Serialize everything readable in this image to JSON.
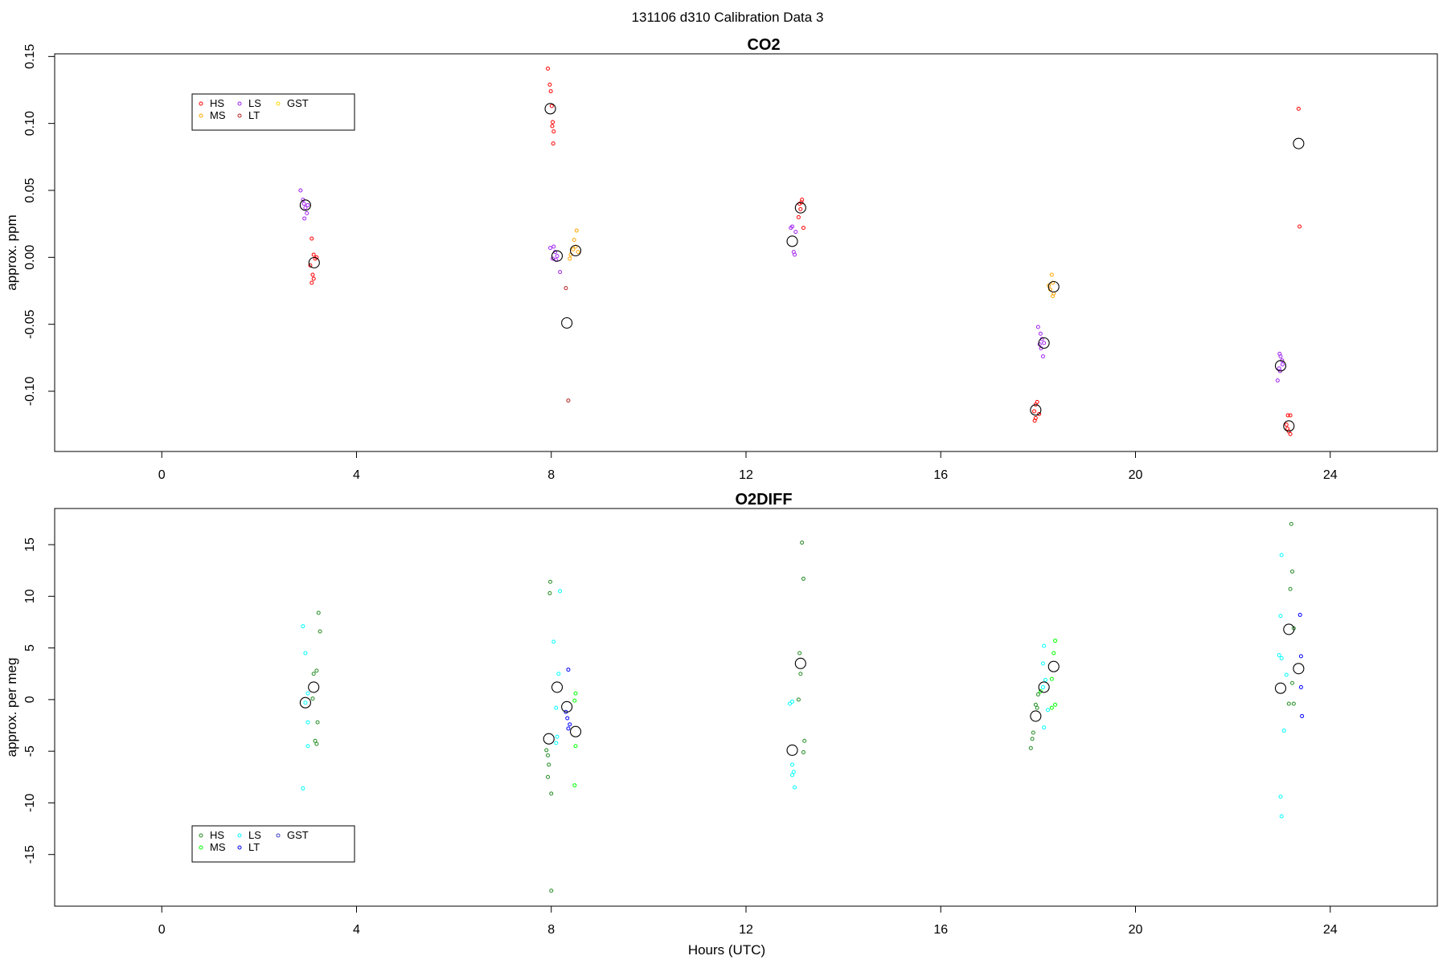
{
  "page": {
    "title": "131106   d310   Calibration Data 3"
  },
  "chart_data": [
    {
      "type": "scatter",
      "title": "CO2",
      "xlabel": "",
      "ylabel": "approx. ppm",
      "xlim": [
        -2.2,
        26.2
      ],
      "ylim": [
        -0.145,
        0.152
      ],
      "xticks": [
        0,
        4,
        8,
        12,
        16,
        20,
        24
      ],
      "yticks": [
        -0.1,
        -0.05,
        0.0,
        0.05,
        0.1,
        0.15
      ],
      "ytick_labels": [
        "-0.10",
        "-0.05",
        "0.00",
        "0.05",
        "0.10",
        "0.15"
      ],
      "legend": {
        "position": "top-left",
        "columns": 3
      },
      "series": [
        {
          "name": "HS",
          "color": "#ff0000",
          "marker": "small-circle",
          "points": [
            [
              3.08,
              0.014
            ],
            [
              3.12,
              0.002
            ],
            [
              3.18,
              0.0
            ],
            [
              3.05,
              -0.006
            ],
            [
              3.1,
              -0.013
            ],
            [
              3.12,
              -0.016
            ],
            [
              3.08,
              -0.019
            ],
            [
              3.15,
              -0.001
            ],
            [
              7.93,
              0.141
            ],
            [
              7.97,
              0.129
            ],
            [
              7.99,
              0.124
            ],
            [
              8.01,
              0.113
            ],
            [
              8.03,
              0.101
            ],
            [
              8.02,
              0.098
            ],
            [
              8.05,
              0.094
            ],
            [
              8.04,
              0.085
            ],
            [
              13.1,
              0.04
            ],
            [
              13.15,
              0.043
            ],
            [
              13.12,
              0.036
            ],
            [
              13.08,
              0.03
            ],
            [
              13.18,
              0.022
            ],
            [
              13.14,
              0.041
            ],
            [
              17.95,
              -0.11
            ],
            [
              17.98,
              -0.108
            ],
            [
              17.92,
              -0.115
            ],
            [
              18.02,
              -0.117
            ],
            [
              17.95,
              -0.12
            ],
            [
              17.93,
              -0.122
            ],
            [
              23.13,
              -0.118
            ],
            [
              23.18,
              -0.118
            ],
            [
              23.1,
              -0.125
            ],
            [
              23.12,
              -0.128
            ],
            [
              23.15,
              -0.13
            ],
            [
              23.18,
              -0.132
            ],
            [
              23.35,
              0.111
            ],
            [
              23.37,
              0.023
            ]
          ]
        },
        {
          "name": "MS",
          "color": "#ffa500",
          "marker": "small-circle",
          "points": [
            [
              8.47,
              0.013
            ],
            [
              8.52,
              0.02
            ],
            [
              8.4,
              0.002
            ],
            [
              8.45,
              0.006
            ],
            [
              8.38,
              -0.001
            ],
            [
              8.55,
              0.004
            ],
            [
              8.5,
              0.008
            ],
            [
              18.28,
              -0.013
            ],
            [
              18.3,
              -0.019
            ],
            [
              18.25,
              -0.024
            ],
            [
              18.32,
              -0.027
            ],
            [
              18.3,
              -0.029
            ],
            [
              18.22,
              -0.021
            ]
          ]
        },
        {
          "name": "LS",
          "color": "#a020f0",
          "marker": "small-circle",
          "points": [
            [
              2.85,
              0.05
            ],
            [
              2.9,
              0.043
            ],
            [
              2.92,
              0.04
            ],
            [
              2.95,
              0.037
            ],
            [
              2.98,
              0.033
            ],
            [
              2.93,
              0.029
            ],
            [
              3.0,
              0.039
            ],
            [
              7.98,
              0.007
            ],
            [
              8.05,
              0.008
            ],
            [
              8.08,
              0.004
            ],
            [
              8.12,
              0.001
            ],
            [
              8.1,
              -0.002
            ],
            [
              8.03,
              -0.001
            ],
            [
              8.18,
              -0.011
            ],
            [
              12.92,
              0.022
            ],
            [
              13.02,
              0.019
            ],
            [
              12.95,
              0.023
            ],
            [
              12.98,
              0.004
            ],
            [
              13.0,
              0.002
            ],
            [
              18.0,
              -0.052
            ],
            [
              18.05,
              -0.057
            ],
            [
              18.08,
              -0.061
            ],
            [
              18.03,
              -0.065
            ],
            [
              18.06,
              -0.068
            ],
            [
              18.1,
              -0.074
            ],
            [
              18.12,
              -0.064
            ],
            [
              22.96,
              -0.072
            ],
            [
              22.98,
              -0.074
            ],
            [
              23.01,
              -0.077
            ],
            [
              22.95,
              -0.083
            ],
            [
              22.97,
              -0.085
            ],
            [
              22.92,
              -0.092
            ],
            [
              23.02,
              -0.08
            ]
          ]
        },
        {
          "name": "LT",
          "color": "#b22222",
          "marker": "small-circle",
          "points": [
            [
              8.3,
              -0.023
            ],
            [
              8.35,
              -0.107
            ]
          ]
        },
        {
          "name": "GST",
          "color": "#ffd700",
          "marker": "small-circle",
          "points": []
        },
        {
          "name": "",
          "color": "#000000",
          "marker": "large-circle",
          "points": [
            [
              2.95,
              0.039
            ],
            [
              3.13,
              -0.004
            ],
            [
              7.98,
              0.111
            ],
            [
              8.12,
              0.001
            ],
            [
              8.32,
              -0.049
            ],
            [
              8.5,
              0.005
            ],
            [
              12.95,
              0.012
            ],
            [
              13.12,
              0.037
            ],
            [
              17.95,
              -0.114
            ],
            [
              18.12,
              -0.064
            ],
            [
              18.32,
              -0.022
            ],
            [
              22.98,
              -0.081
            ],
            [
              23.15,
              -0.126
            ],
            [
              23.35,
              0.085
            ]
          ]
        }
      ]
    },
    {
      "type": "scatter",
      "title": "O2DIFF",
      "xlabel": "Hours (UTC)",
      "ylabel": "approx. per meg",
      "xlim": [
        -2.2,
        26.2
      ],
      "ylim": [
        -20.0,
        18.5
      ],
      "xticks": [
        0,
        4,
        8,
        12,
        16,
        20,
        24
      ],
      "yticks": [
        -15,
        -10,
        -5,
        0,
        5,
        10,
        15
      ],
      "ytick_labels": [
        "-15",
        "-10",
        "-5",
        "0",
        "5",
        "10",
        "15"
      ],
      "legend": {
        "position": "bottom-left",
        "columns": 3
      },
      "series": [
        {
          "name": "HS",
          "color": "#228b22",
          "marker": "small-circle",
          "points": [
            [
              3.22,
              8.4
            ],
            [
              3.25,
              6.6
            ],
            [
              3.18,
              2.8
            ],
            [
              3.12,
              2.5
            ],
            [
              3.2,
              -2.2
            ],
            [
              3.15,
              -4.0
            ],
            [
              3.18,
              -4.3
            ],
            [
              3.1,
              0.1
            ],
            [
              7.98,
              11.4
            ],
            [
              7.97,
              10.3
            ],
            [
              7.9,
              -4.9
            ],
            [
              7.93,
              -5.4
            ],
            [
              7.95,
              -6.3
            ],
            [
              7.93,
              -7.5
            ],
            [
              8.0,
              -9.1
            ],
            [
              8.0,
              -18.5
            ],
            [
              13.15,
              15.2
            ],
            [
              13.18,
              11.7
            ],
            [
              13.1,
              4.5
            ],
            [
              13.12,
              2.5
            ],
            [
              13.08,
              0.0
            ],
            [
              13.2,
              -4.0
            ],
            [
              13.18,
              -5.1
            ],
            [
              18.0,
              0.5
            ],
            [
              17.95,
              -0.5
            ],
            [
              17.98,
              -0.8
            ],
            [
              17.9,
              -3.2
            ],
            [
              17.88,
              -3.8
            ],
            [
              17.85,
              -4.7
            ],
            [
              23.2,
              17.0
            ],
            [
              23.22,
              12.4
            ],
            [
              23.18,
              10.7
            ],
            [
              23.25,
              6.9
            ],
            [
              23.22,
              1.6
            ],
            [
              23.15,
              -0.4
            ],
            [
              23.25,
              -0.4
            ]
          ]
        },
        {
          "name": "MS",
          "color": "#00ff00",
          "marker": "small-circle",
          "points": [
            [
              8.5,
              0.6
            ],
            [
              8.48,
              -0.1
            ],
            [
              8.5,
              -4.5
            ],
            [
              8.48,
              -8.3
            ],
            [
              18.35,
              5.7
            ],
            [
              18.32,
              4.5
            ],
            [
              18.28,
              2.0
            ],
            [
              18.35,
              -0.5
            ],
            [
              18.28,
              -0.8
            ],
            [
              18.05,
              0.8
            ]
          ]
        },
        {
          "name": "LS",
          "color": "#00ffff",
          "marker": "small-circle",
          "points": [
            [
              2.9,
              7.1
            ],
            [
              2.95,
              4.5
            ],
            [
              3.0,
              0.6
            ],
            [
              2.95,
              -0.3
            ],
            [
              3.0,
              -2.2
            ],
            [
              3.0,
              -4.5
            ],
            [
              2.9,
              -8.6
            ],
            [
              8.18,
              10.5
            ],
            [
              8.05,
              5.6
            ],
            [
              8.15,
              2.5
            ],
            [
              8.1,
              -0.8
            ],
            [
              8.12,
              -3.6
            ],
            [
              8.1,
              -4.2
            ],
            [
              12.95,
              -0.2
            ],
            [
              12.9,
              -0.4
            ],
            [
              12.95,
              -6.3
            ],
            [
              12.98,
              -7.0
            ],
            [
              12.95,
              -7.3
            ],
            [
              13.0,
              -8.5
            ],
            [
              18.12,
              5.2
            ],
            [
              18.1,
              3.5
            ],
            [
              18.15,
              1.9
            ],
            [
              18.1,
              1.2
            ],
            [
              18.2,
              -1.0
            ],
            [
              18.12,
              -2.7
            ],
            [
              23.0,
              14.0
            ],
            [
              22.98,
              8.1
            ],
            [
              22.95,
              4.3
            ],
            [
              23.0,
              4.0
            ],
            [
              23.1,
              2.4
            ],
            [
              23.05,
              -3.0
            ],
            [
              22.98,
              -9.4
            ],
            [
              23.0,
              -11.3
            ]
          ]
        },
        {
          "name": "LT",
          "color": "#0000ff",
          "marker": "small-circle",
          "points": [
            [
              8.35,
              2.9
            ],
            [
              8.3,
              -1.2
            ],
            [
              8.33,
              -1.8
            ],
            [
              8.38,
              -2.4
            ],
            [
              8.35,
              -2.8
            ],
            [
              23.38,
              8.2
            ],
            [
              23.4,
              4.2
            ],
            [
              23.4,
              1.2
            ],
            [
              23.42,
              -1.6
            ]
          ]
        },
        {
          "name": "GST",
          "color": "#4040c0",
          "marker": "small-circle",
          "points": []
        },
        {
          "name": "",
          "color": "#000000",
          "marker": "large-circle",
          "points": [
            [
              2.95,
              -0.3
            ],
            [
              3.12,
              1.2
            ],
            [
              7.95,
              -3.8
            ],
            [
              8.12,
              1.2
            ],
            [
              8.32,
              -0.7
            ],
            [
              8.5,
              -3.1
            ],
            [
              12.95,
              -4.9
            ],
            [
              13.12,
              3.5
            ],
            [
              17.95,
              -1.6
            ],
            [
              18.12,
              1.2
            ],
            [
              18.32,
              3.2
            ],
            [
              22.98,
              1.1
            ],
            [
              23.15,
              6.8
            ],
            [
              23.35,
              3.0
            ]
          ]
        }
      ]
    }
  ]
}
